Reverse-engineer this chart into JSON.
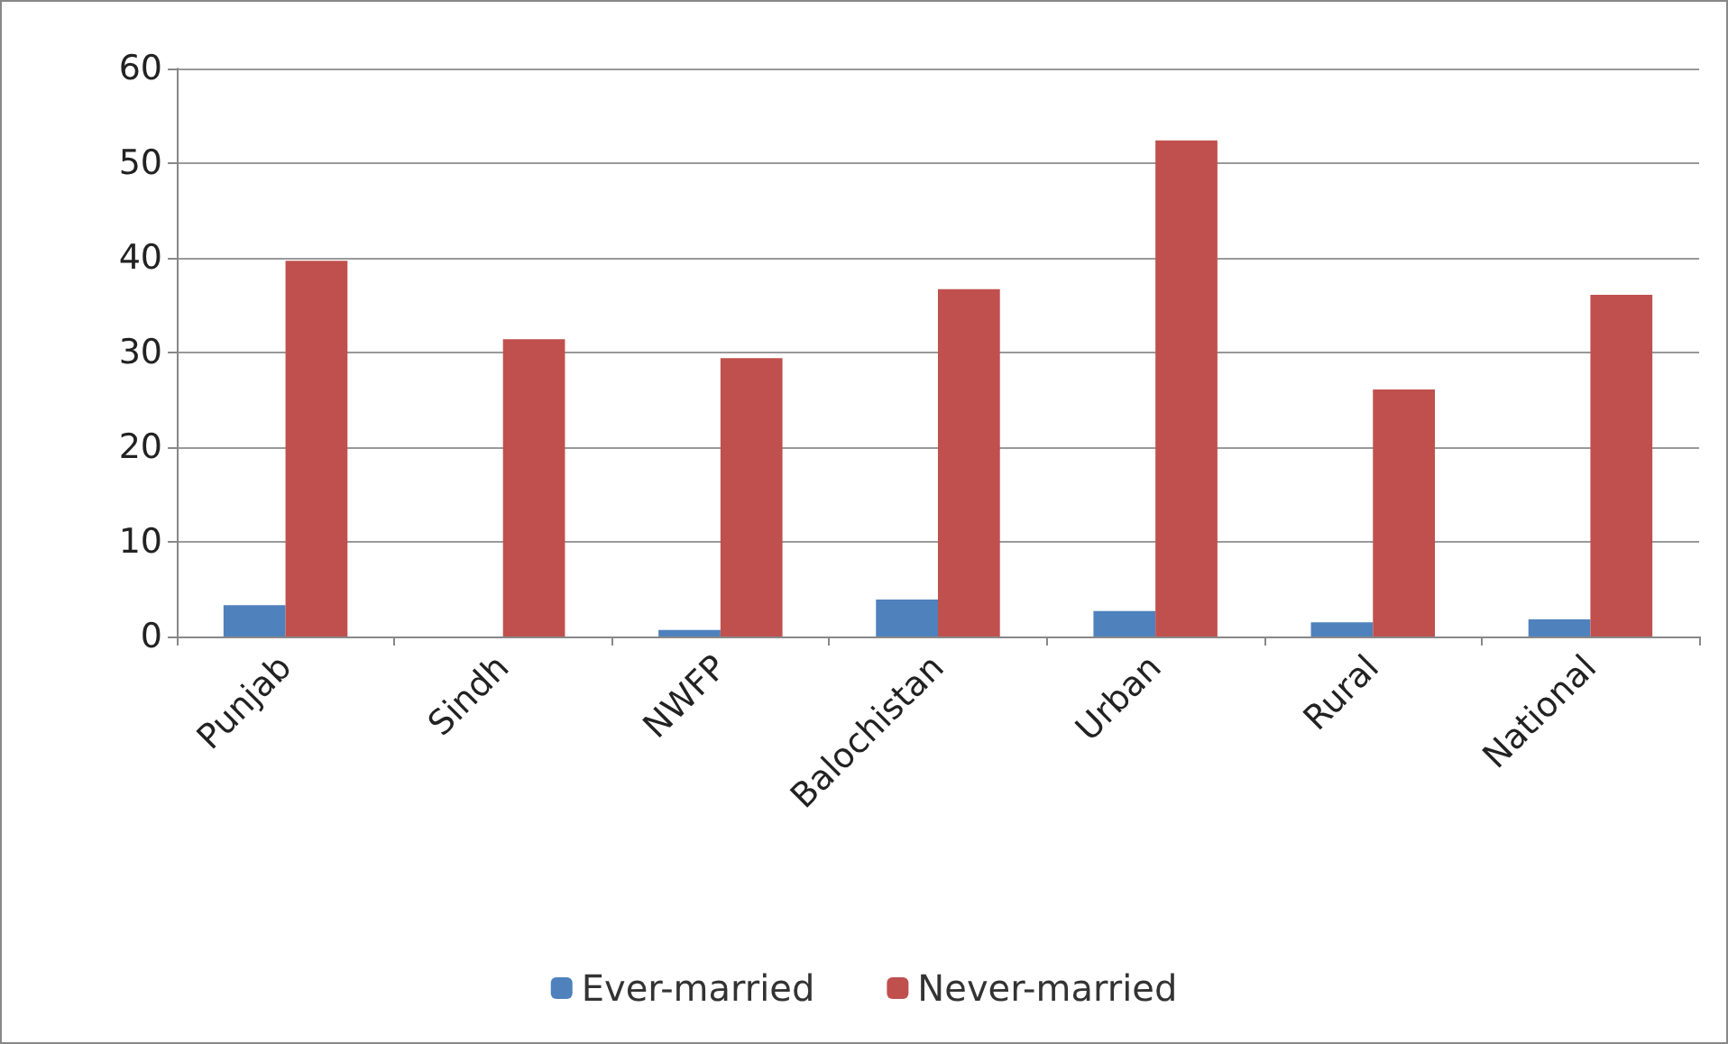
{
  "chart_data": {
    "type": "bar",
    "categories": [
      "Punjab",
      "Sindh",
      "NWFP",
      "Balochistan",
      "Urban",
      "Rural",
      "National"
    ],
    "series": [
      {
        "name": "Ever-married",
        "color": "#4f81bd",
        "values": [
          3.3,
          0,
          0.7,
          3.9,
          2.7,
          1.5,
          1.8
        ]
      },
      {
        "name": "Never-married",
        "color": "#c0504d",
        "values": [
          39.7,
          31.4,
          29.4,
          36.7,
          52.4,
          26.1,
          36.1
        ]
      }
    ],
    "ylim": [
      0,
      60
    ],
    "yticks": [
      0,
      10,
      20,
      30,
      40,
      50,
      60
    ],
    "grid": "y",
    "legend": "bottom"
  }
}
